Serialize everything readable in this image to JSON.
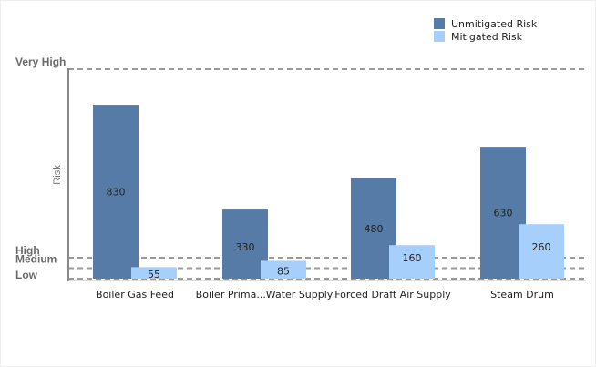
{
  "chart_data": {
    "type": "bar",
    "categories": [
      "Boiler Gas Feed",
      "Boiler Prima...Water Supply",
      "Forced Draft Air Supply",
      "Steam Drum"
    ],
    "series": [
      {
        "name": "Unmitigated Risk",
        "color": "#557ba6",
        "values": [
          830,
          330,
          480,
          630
        ]
      },
      {
        "name": "Mitigated Risk",
        "color": "#a6d0fb",
        "values": [
          55,
          85,
          160,
          260
        ]
      }
    ],
    "ylabel": "Risk",
    "ylim": [
      0,
      1000
    ],
    "thresholds": [
      {
        "label": "Very High",
        "value": 1000
      },
      {
        "label": "High",
        "value": 100
      },
      {
        "label": "Medium",
        "value": 50
      },
      {
        "label": "Low",
        "value": 0
      }
    ],
    "legend_position": "top-right"
  }
}
